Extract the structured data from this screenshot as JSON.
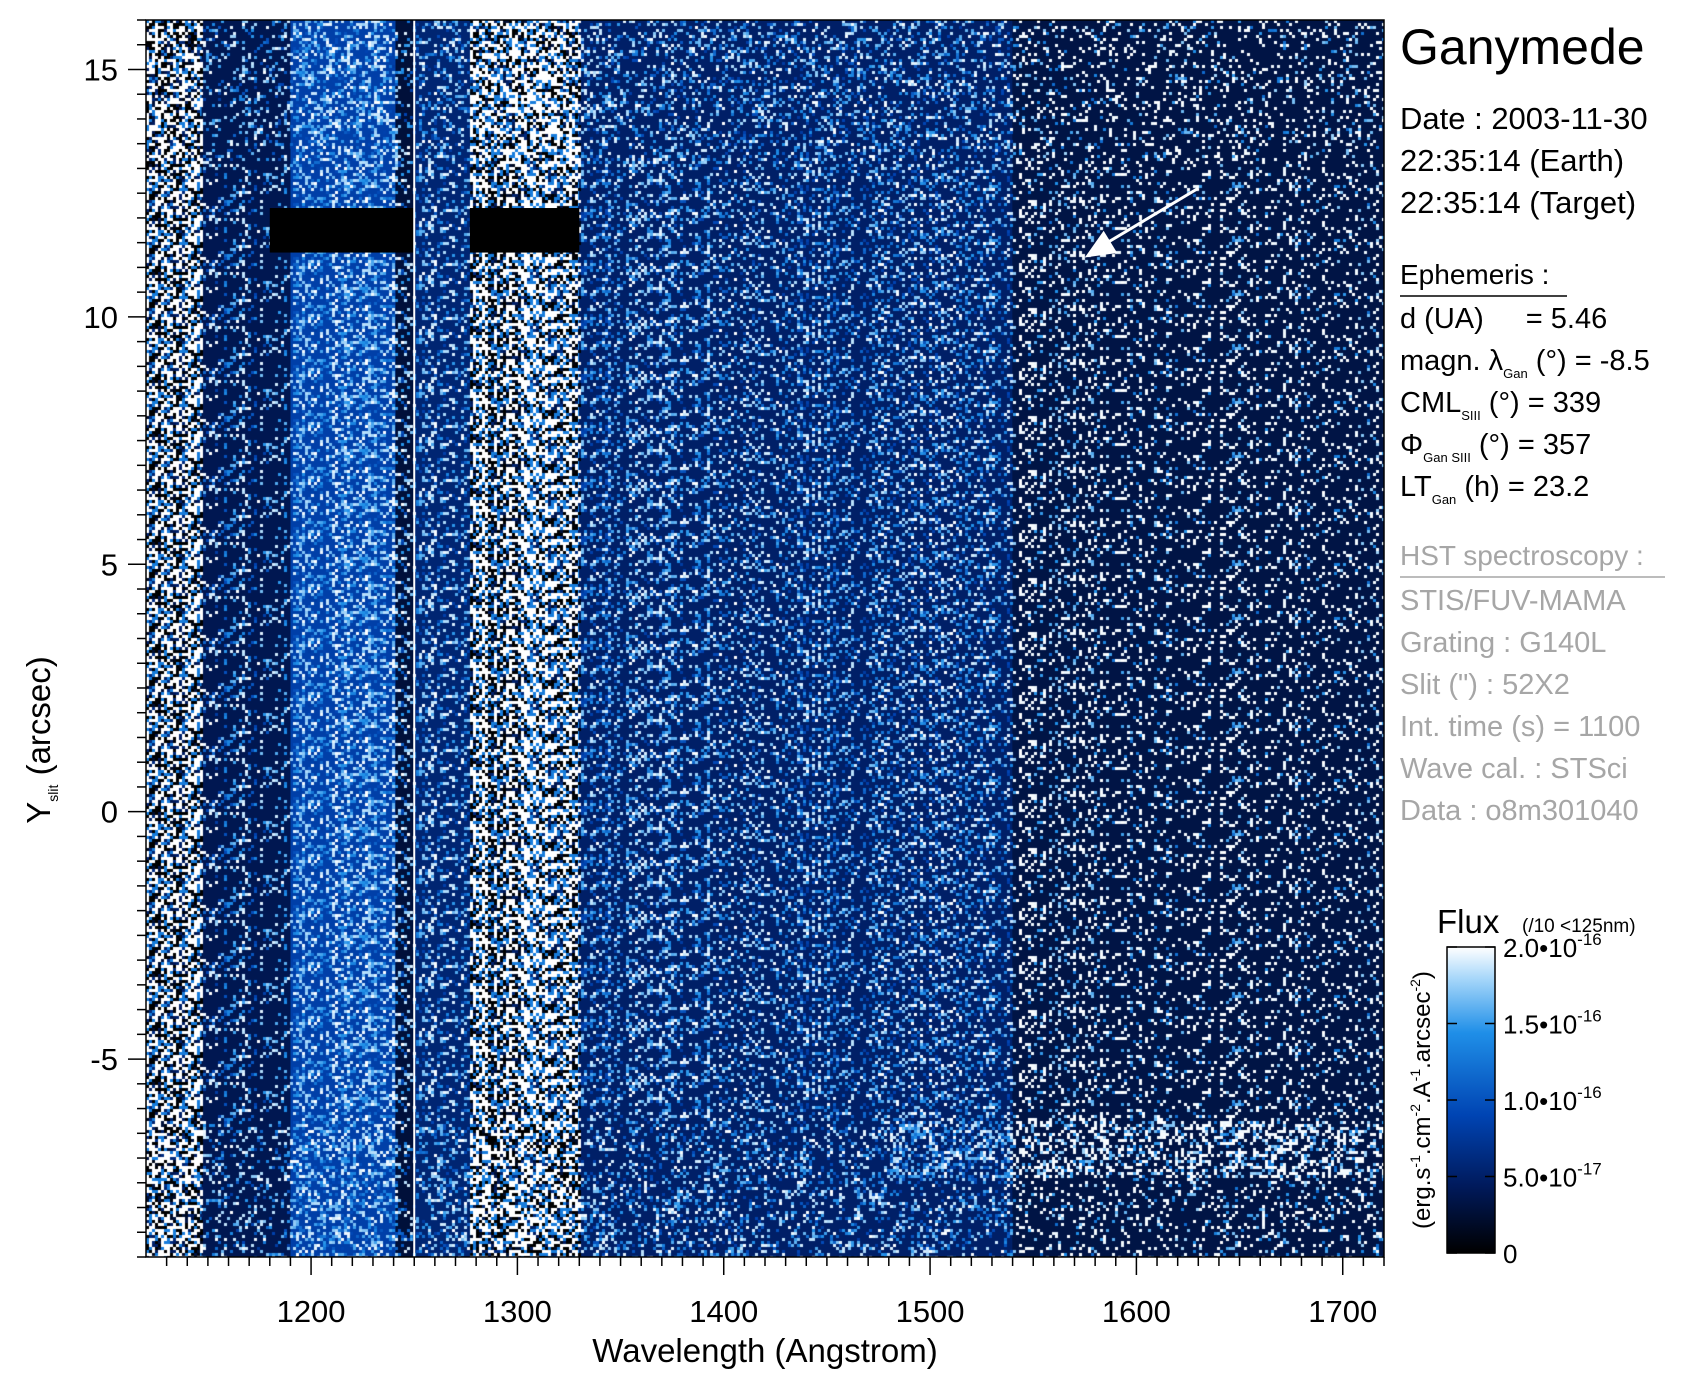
{
  "chart_data": {
    "type": "heatmap",
    "title": "Ganymede",
    "xlabel": "Wavelength (Angstrom)",
    "ylabel_main": "Y",
    "ylabel_sub": "slit",
    "ylabel_rest": " (arcsec)",
    "xlim": [
      1120,
      1720
    ],
    "ylim": [
      -9,
      16
    ],
    "x_ticks": [
      1200,
      1300,
      1400,
      1500,
      1600,
      1700
    ],
    "x_tick_labels": [
      "1200",
      "1300",
      "1400",
      "1500",
      "1600",
      "1700"
    ],
    "y_ticks": [
      -5,
      0,
      5,
      10,
      15
    ],
    "y_tick_labels": [
      "-5",
      "0",
      "5",
      "10",
      "15"
    ],
    "colormap": [
      "#000000",
      "#001a5c",
      "#0044b3",
      "#1f8fe8",
      "#a9d8fa",
      "#ffffff"
    ],
    "colorbar": {
      "title": "Flux",
      "note": "(/10 <125nm)",
      "range": [
        0,
        2e-16
      ],
      "ticks": [
        0,
        5e-17,
        1e-16,
        1.5e-16,
        2e-16
      ],
      "tick_labels": [
        {
          "mant": "0",
          "exp": ""
        },
        {
          "mant": "5.0•10",
          "exp": "-17"
        },
        {
          "mant": "1.0•10",
          "exp": "-16"
        },
        {
          "mant": "1.5•10",
          "exp": "-16"
        },
        {
          "mant": "2.0•10",
          "exp": "-16"
        }
      ],
      "unit_parts": [
        "(erg.s",
        "-1",
        ".cm",
        "-2",
        ".A",
        "-1",
        ".arcsec",
        "-2",
        ")"
      ]
    },
    "regions": [
      {
        "name": "saturated-left-band",
        "x": [
          1120,
          1147
        ],
        "level": 1.0
      },
      {
        "name": "dark-blue-band",
        "x": [
          1147,
          1190
        ],
        "level": 0.35
      },
      {
        "name": "mixed-band-1",
        "x": [
          1190,
          1241
        ],
        "level": 0.75
      },
      {
        "name": "dark-band",
        "x": [
          1241,
          1250
        ],
        "level": 0.25
      },
      {
        "name": "blue-band-2",
        "x": [
          1250,
          1277
        ],
        "level": 0.5
      },
      {
        "name": "saturated-band-2",
        "x": [
          1277,
          1330
        ],
        "level": 0.9
      },
      {
        "name": "blue-region",
        "x": [
          1330,
          1540
        ],
        "level": 0.45
      },
      {
        "name": "sparse-region",
        "x": [
          1540,
          1720
        ],
        "level": 0.3
      }
    ],
    "masked_bars": [
      {
        "x": [
          1180,
          1250
        ],
        "y": [
          11.3,
          12.2
        ]
      },
      {
        "x": [
          1277,
          1330
        ],
        "y": [
          11.3,
          12.2
        ]
      }
    ],
    "emission_band": {
      "y": -6.8,
      "x": [
        1480,
        1720
      ]
    },
    "arrow": {
      "from": [
        1630,
        12.6
      ],
      "to": [
        1575,
        11.2
      ]
    },
    "vertical_line_x": 1250
  },
  "info": {
    "date": "Date : 2003-11-30",
    "time_earth": "22:35:14 (Earth)",
    "time_target": "22:35:14 (Target)",
    "ephemeris_header": "Ephemeris :",
    "d_label": "d (UA)",
    "d_value": "= 5.46",
    "magn_prefix": "magn. λ",
    "magn_sub": "Gan",
    "magn_suffix": " (°)  = -8.5",
    "cml_prefix": "CML",
    "cml_sub": "SIII",
    "cml_suffix": " (°) = 339",
    "phi_prefix": "Φ",
    "phi_sub": "Gan SIII",
    "phi_suffix": " (°) = 357",
    "lt_prefix": "LT",
    "lt_sub": "Gan",
    "lt_suffix": " (h) = 23.2",
    "hst_header": "HST spectroscopy :",
    "instrument": "STIS/FUV-MAMA",
    "grating": "Grating : G140L",
    "slit": "Slit (\") : 52X2",
    "int_time": "Int. time (s) = 1100",
    "wave_cal": "Wave cal. : STSci",
    "data_id": "Data : o8m301040"
  }
}
